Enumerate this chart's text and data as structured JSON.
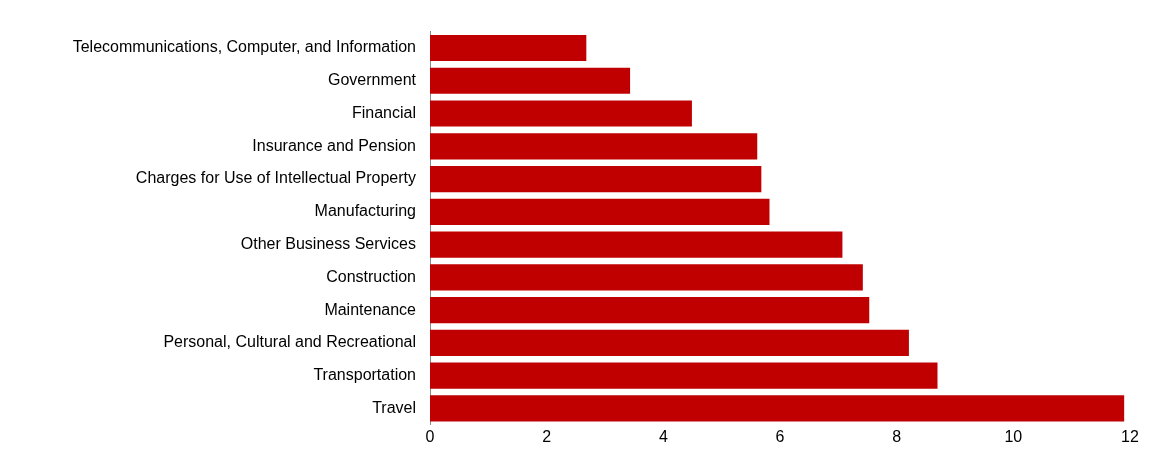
{
  "chart_data": {
    "type": "bar",
    "orientation": "horizontal",
    "categories": [
      "Telecommunications, Computer, and Information",
      "Government",
      "Financial",
      "Insurance and Pension",
      "Charges for Use of Intellectual Property",
      "Manufacturing",
      "Other Business Services",
      "Construction",
      "Maintenance",
      "Personal, Cultural and Recreational",
      "Transportation",
      "Travel"
    ],
    "values": [
      2.68,
      3.43,
      4.49,
      5.61,
      5.68,
      5.82,
      7.07,
      7.42,
      7.53,
      8.21,
      8.7,
      11.9
    ],
    "color": "#c00000",
    "xlim": [
      0,
      12
    ],
    "xticks": [
      0,
      2,
      4,
      6,
      8,
      10,
      12
    ],
    "grid": false,
    "legend": false
  }
}
